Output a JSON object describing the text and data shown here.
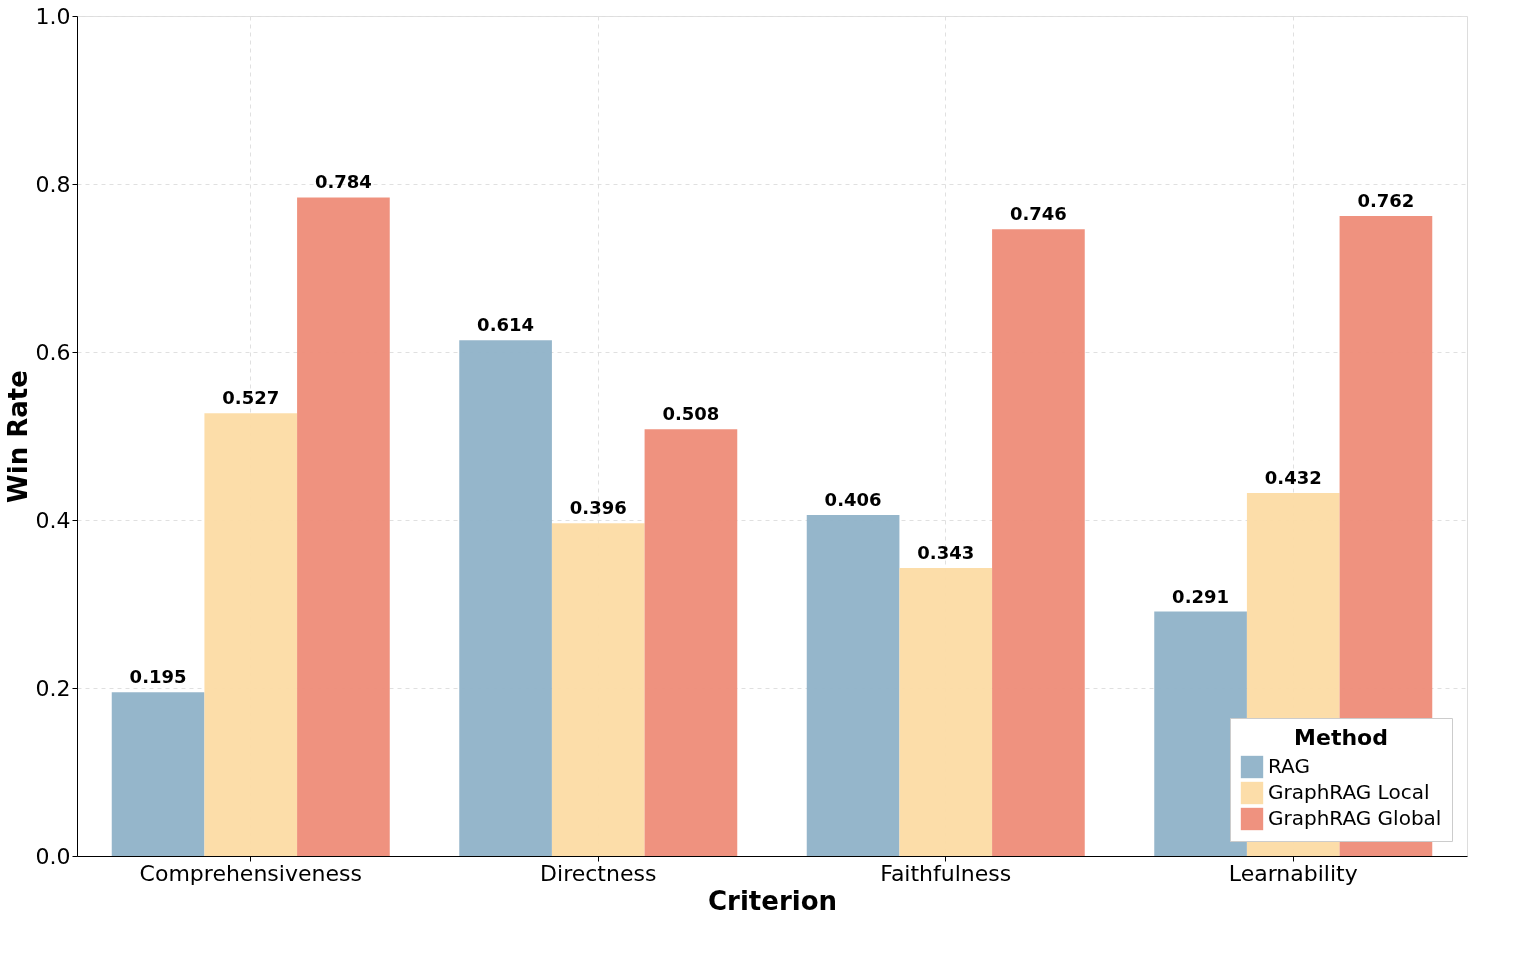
{
  "chart_data": {
    "type": "bar",
    "xlabel": "Criterion",
    "ylabel": "Win Rate",
    "legend_title": "Method",
    "categories": [
      "Comprehensiveness",
      "Directness",
      "Faithfulness",
      "Learnability"
    ],
    "series": [
      {
        "name": "RAG",
        "color": "#8fb2c8",
        "values": [
          0.195,
          0.614,
          0.406,
          0.291
        ]
      },
      {
        "name": "GraphRAG Local",
        "color": "#fcdba4",
        "values": [
          0.527,
          0.396,
          0.343,
          0.432
        ]
      },
      {
        "name": "GraphRAG Global",
        "color": "#ee8c78",
        "values": [
          0.784,
          0.508,
          0.746,
          0.762
        ]
      }
    ],
    "ylim": [
      0,
      1
    ],
    "yticks": [
      {
        "value": 0,
        "label": "0.0"
      },
      0.2,
      0.4,
      0.6,
      0.8,
      {
        "value": 1,
        "label": "1.0"
      }
    ],
    "grid": true,
    "legend": "bottom right",
    "data_labels": true
  }
}
